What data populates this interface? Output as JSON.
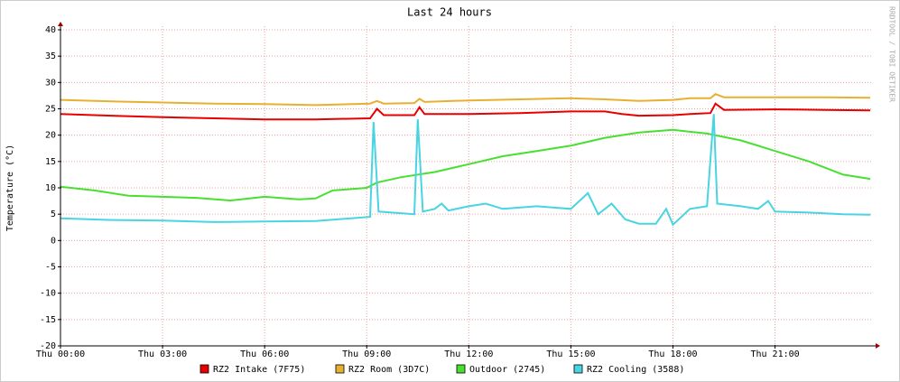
{
  "chart_data": {
    "type": "line",
    "title": "Last 24 hours",
    "y_label": "Temperature (°C)",
    "side_label": "RRDTOOL / TOBI OETIKER",
    "xlim": [
      0,
      23.85
    ],
    "xticks": [
      {
        "value": 0,
        "label": "Thu 00:00"
      },
      {
        "value": 3,
        "label": "Thu 03:00"
      },
      {
        "value": 6,
        "label": "Thu 06:00"
      },
      {
        "value": 9,
        "label": "Thu 09:00"
      },
      {
        "value": 12,
        "label": "Thu 12:00"
      },
      {
        "value": 15,
        "label": "Thu 15:00"
      },
      {
        "value": 18,
        "label": "Thu 18:00"
      },
      {
        "value": 21,
        "label": "Thu 21:00"
      }
    ],
    "ylim": [
      -20,
      40
    ],
    "yticks": [
      -20,
      -15,
      -10,
      -5,
      0,
      5,
      10,
      15,
      20,
      25,
      30,
      35,
      40
    ],
    "grid": true,
    "series": [
      {
        "name": "RZ2 Intake (7F75)",
        "color": "#e80000",
        "x": [
          0,
          1.5,
          3,
          4.5,
          6,
          7.5,
          9.1,
          9.3,
          9.5,
          10.4,
          10.55,
          10.7,
          12,
          13.5,
          15,
          16,
          16.5,
          17,
          18,
          18.5,
          19.1,
          19.25,
          19.5,
          21,
          22.5,
          23.8
        ],
        "values": [
          24,
          23.7,
          23.4,
          23.2,
          23,
          23,
          23.2,
          25,
          23.8,
          23.8,
          25.3,
          24,
          24,
          24.2,
          24.5,
          24.5,
          24,
          23.7,
          23.8,
          24,
          24.2,
          26,
          24.8,
          24.9,
          24.8,
          24.7
        ]
      },
      {
        "name": "RZ2 Room (3D7C)",
        "color": "#e8b030",
        "x": [
          0,
          1.5,
          3,
          4.5,
          6,
          7.5,
          9.1,
          9.3,
          9.5,
          10.4,
          10.55,
          10.7,
          12,
          13.5,
          15,
          16,
          17,
          18,
          18.5,
          19.1,
          19.25,
          19.5,
          21,
          22.5,
          23.8
        ],
        "values": [
          26.7,
          26.4,
          26.2,
          26,
          25.9,
          25.7,
          26,
          26.5,
          26,
          26.1,
          26.9,
          26.3,
          26.6,
          26.8,
          27,
          26.8,
          26.5,
          26.7,
          27,
          27,
          27.8,
          27.2,
          27.2,
          27.2,
          27.1
        ]
      },
      {
        "name": "Outdoor (2745)",
        "color": "#48e030",
        "x": [
          0,
          1,
          2,
          3,
          4,
          5,
          6,
          7,
          7.5,
          8,
          9,
          9.3,
          10,
          11,
          12,
          13,
          14,
          15,
          16,
          17,
          18,
          19,
          20,
          21,
          22,
          23,
          23.8
        ],
        "values": [
          10.2,
          9.5,
          8.5,
          8.3,
          8.1,
          7.6,
          8.3,
          7.8,
          8,
          9.5,
          10,
          11,
          12,
          13,
          14.5,
          16,
          17,
          18,
          19.5,
          20.5,
          21,
          20.3,
          19,
          17,
          15,
          12.5,
          11.7
        ]
      },
      {
        "name": "RZ2 Cooling (3588)",
        "color": "#48d4e0",
        "x": [
          0,
          1.5,
          3,
          4.5,
          6,
          7.5,
          9.1,
          9.2,
          9.35,
          10.4,
          10.5,
          10.65,
          11,
          11.2,
          11.4,
          12,
          12.5,
          13,
          14,
          15,
          15.5,
          15.8,
          16.2,
          16.6,
          17,
          17.5,
          17.8,
          18,
          18.5,
          19,
          19.2,
          19.3,
          20,
          20.5,
          20.8,
          21,
          22,
          23,
          23.8
        ],
        "values": [
          4.2,
          3.9,
          3.8,
          3.5,
          3.6,
          3.7,
          4.5,
          22.5,
          5.5,
          5,
          23,
          5.5,
          6,
          7,
          5.7,
          6.5,
          7,
          6,
          6.5,
          6,
          9,
          5,
          7,
          4,
          3.2,
          3.2,
          6,
          3,
          6,
          6.5,
          24,
          7,
          6.5,
          6,
          7.5,
          5.5,
          5.3,
          5,
          4.9
        ]
      }
    ]
  }
}
